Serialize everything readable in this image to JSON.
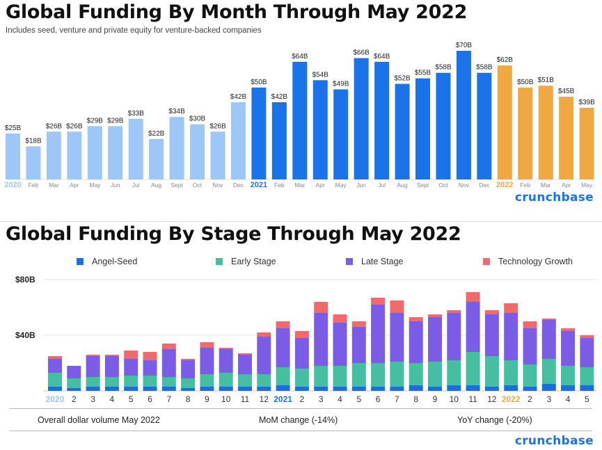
{
  "top": {
    "title": "Global Funding By Month Through May 2022",
    "subtitle": "Includes seed, venture and private equity for venture-backed companies",
    "brand": "crunchbase"
  },
  "bottom": {
    "title": "Global Funding By Stage Through May 2022",
    "brand": "crunchbase",
    "summary": {
      "overall": "Overall dollar volume May 2022",
      "mom": "MoM change (-14%)",
      "yoy": "YoY change (-20%)"
    }
  },
  "colors": {
    "y2020": "#9cc7f7",
    "y2021": "#1a73e8",
    "y2022": "#f0a842",
    "angel_seed": "#1a6fe0",
    "early_stage": "#45bf9f",
    "late_stage": "#7b5ce6",
    "tech_growth": "#ef6b6b"
  },
  "chart_data": [
    {
      "type": "bar",
      "title": "Global Funding By Month Through May 2022",
      "subtitle": "Includes seed, venture and private equity for venture-backed companies",
      "categories": [
        "2020",
        "Feb",
        "Mar",
        "Apr",
        "May",
        "Jun",
        "Jul",
        "Aug",
        "Sept",
        "Oct",
        "Nov",
        "Dec",
        "2021",
        "Feb",
        "Mar",
        "Apr",
        "May",
        "Jun",
        "Jul",
        "Aug",
        "Sept",
        "Oct",
        "Nov",
        "Dec",
        "2022",
        "Feb",
        "Mar",
        "Apr",
        "May"
      ],
      "values": [
        25,
        18,
        26,
        26,
        29,
        29,
        33,
        22,
        34,
        30,
        26,
        42,
        50,
        42,
        64,
        54,
        49,
        66,
        64,
        52,
        55,
        58,
        70,
        58,
        62,
        50,
        51,
        45,
        39
      ],
      "data_labels": [
        "$25B",
        "$18B",
        "$26B",
        "$26B",
        "$29B",
        "$29B",
        "$33B",
        "$22B",
        "$34B",
        "$30B",
        "$26B",
        "$42B",
        "$50B",
        "$42B",
        "$64B",
        "$54B",
        "$49B",
        "$66B",
        "$64B",
        "$52B",
        "$55B",
        "$58B",
        "$70B",
        "$58B",
        "$62B",
        "$50B",
        "$51B",
        "$45B",
        "$39B"
      ],
      "series_year": [
        2020,
        2020,
        2020,
        2020,
        2020,
        2020,
        2020,
        2020,
        2020,
        2020,
        2020,
        2020,
        2021,
        2021,
        2021,
        2021,
        2021,
        2021,
        2021,
        2021,
        2021,
        2021,
        2021,
        2021,
        2022,
        2022,
        2022,
        2022,
        2022
      ],
      "ylim": [
        0,
        70
      ],
      "grid": false
    },
    {
      "type": "bar",
      "stacked": true,
      "title": "Global Funding By Stage Through May 2022",
      "categories": [
        "2020",
        "2",
        "3",
        "4",
        "5",
        "6",
        "7",
        "8",
        "9",
        "10",
        "11",
        "12",
        "2021",
        "2",
        "3",
        "4",
        "5",
        "6",
        "7",
        "8",
        "9",
        "10",
        "11",
        "12",
        "2022",
        "2",
        "3",
        "4",
        "5"
      ],
      "series": [
        {
          "name": "Angel-Seed",
          "values": [
            3,
            2,
            3,
            3,
            3,
            3,
            3,
            2,
            3,
            3,
            3,
            3,
            4,
            3,
            3,
            3,
            3,
            3,
            3,
            4,
            3,
            4,
            4,
            3,
            4,
            3,
            5,
            4,
            4
          ]
        },
        {
          "name": "Early Stage",
          "values": [
            10,
            7,
            7,
            7,
            8,
            8,
            7,
            7,
            9,
            10,
            9,
            9,
            13,
            13,
            15,
            15,
            17,
            17,
            18,
            16,
            18,
            18,
            24,
            22,
            18,
            16,
            18,
            14,
            13
          ]
        },
        {
          "name": "Late Stage",
          "values": [
            10,
            9,
            15,
            15,
            12,
            11,
            20,
            13,
            19,
            17,
            14,
            27,
            28,
            22,
            38,
            31,
            26,
            42,
            35,
            30,
            32,
            34,
            36,
            30,
            34,
            26,
            28,
            25,
            21
          ]
        },
        {
          "name": "Technology Growth",
          "values": [
            2,
            0,
            1,
            1,
            6,
            6,
            4,
            1,
            4,
            1,
            1,
            3,
            5,
            5,
            8,
            6,
            4,
            5,
            9,
            3,
            2,
            2,
            7,
            3,
            7,
            5,
            1,
            2,
            2
          ]
        }
      ],
      "yticks": [
        "$40B",
        "$80B"
      ],
      "ylim": [
        0,
        80
      ],
      "grid": true,
      "legend_position": "top"
    }
  ]
}
